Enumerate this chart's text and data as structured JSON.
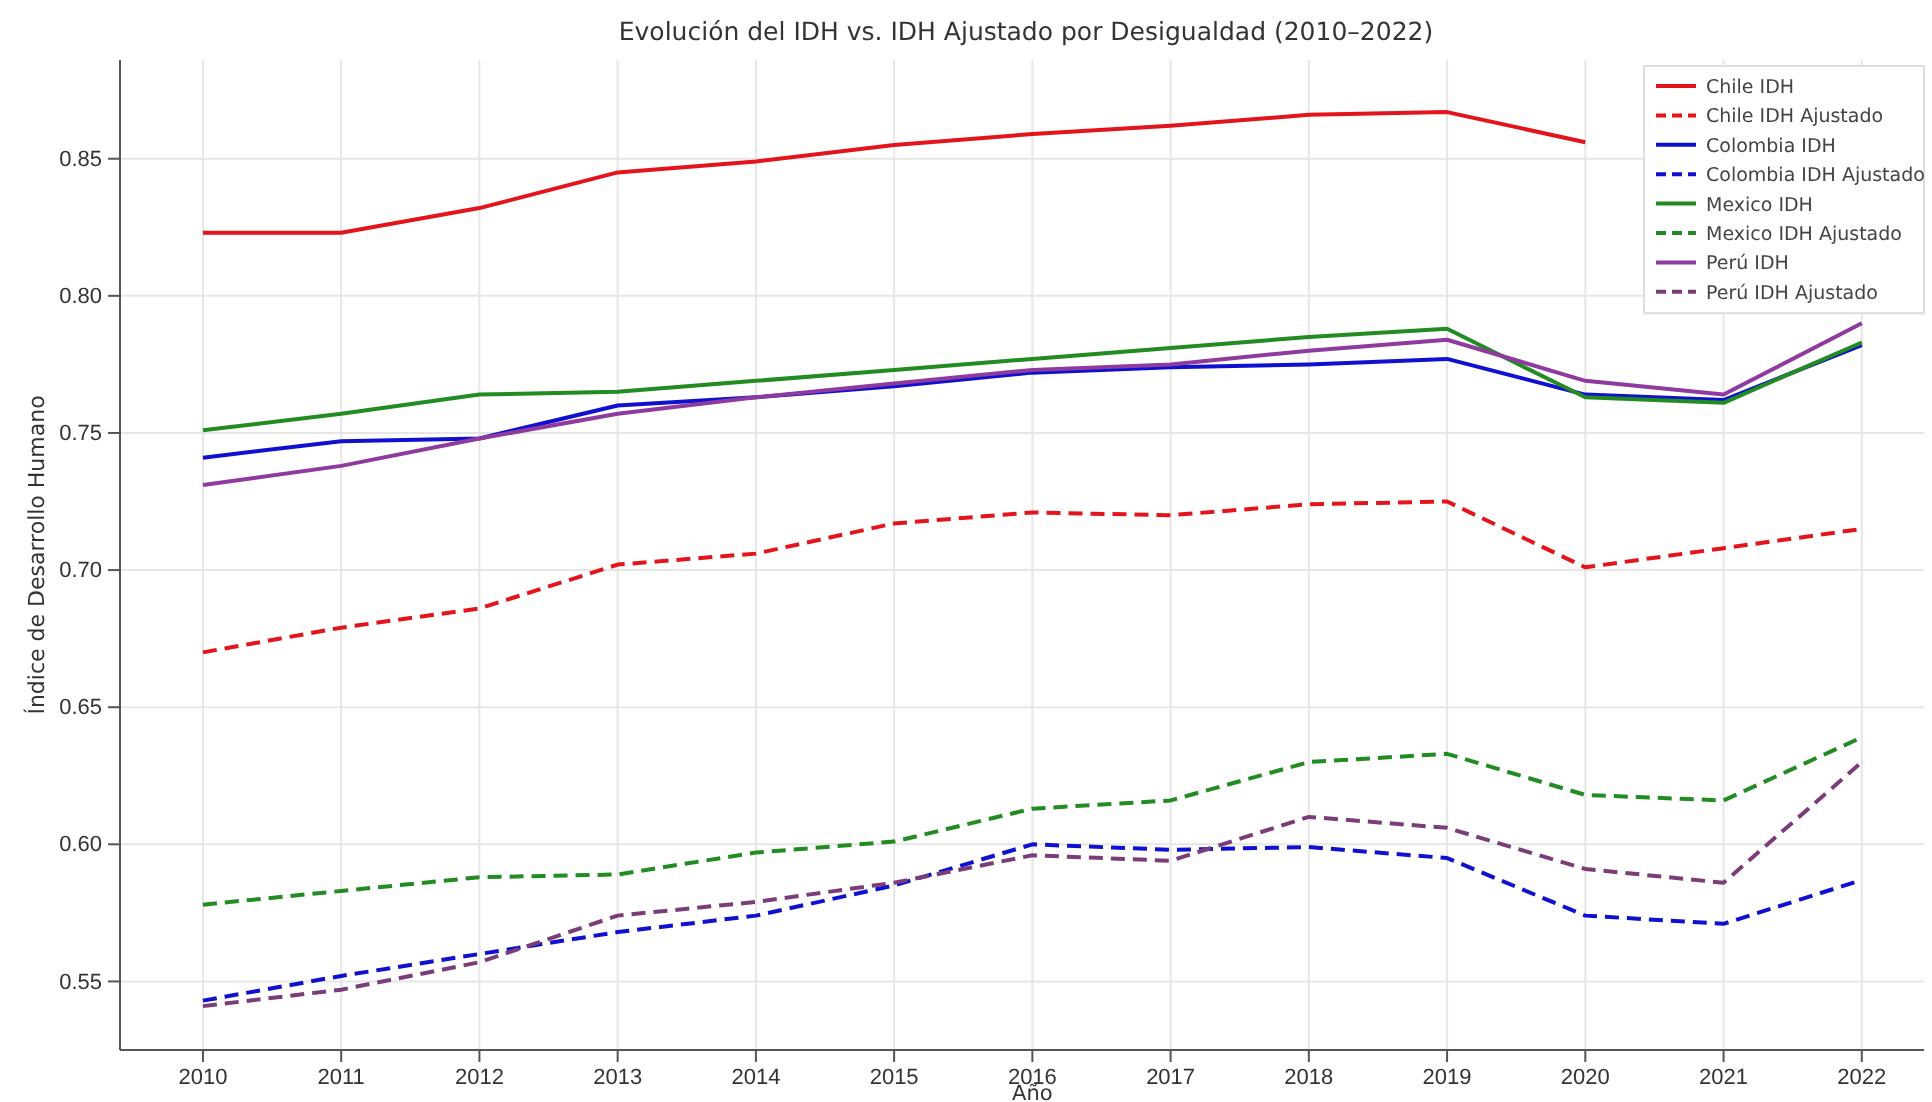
{
  "chart_data": {
    "type": "line",
    "title": "Evolución del IDH vs. IDH Ajustado por Desigualdad (2010–2022)",
    "xlabel": "Año",
    "ylabel": "Índice de Desarrollo Humano",
    "x": [
      2010,
      2011,
      2012,
      2013,
      2014,
      2015,
      2016,
      2017,
      2018,
      2019,
      2020,
      2021,
      2022
    ],
    "xlim": [
      2009.4,
      2022.45
    ],
    "xticks": [
      2010,
      2011,
      2012,
      2013,
      2014,
      2015,
      2016,
      2017,
      2018,
      2019,
      2020,
      2021,
      2022
    ],
    "ylim": [
      0.525,
      0.886
    ],
    "yticks": [
      0.55,
      {
        "value": 0.6,
        "label": "0.60"
      },
      0.65,
      {
        "value": 0.7,
        "label": "0.70"
      },
      0.75,
      {
        "value": 0.8,
        "label": "0.80"
      },
      0.85
    ],
    "grid": true,
    "legend": "top right",
    "series": [
      {
        "name": "Chile IDH",
        "color": "#e3141b",
        "line_style": "solid",
        "values": [
          0.823,
          0.823,
          0.832,
          0.845,
          0.849,
          0.855,
          0.859,
          0.862,
          0.866,
          0.867,
          0.856,
          null,
          null
        ]
      },
      {
        "name": "Chile IDH Ajustado",
        "color": "#e3141b",
        "line_style": "dashed",
        "values": [
          0.67,
          0.679,
          0.686,
          0.702,
          0.706,
          0.717,
          0.721,
          0.72,
          0.724,
          0.725,
          0.701,
          0.708,
          0.715
        ]
      },
      {
        "name": "Colombia IDH",
        "color": "#1010d0",
        "line_style": "solid",
        "values": [
          0.741,
          0.747,
          0.748,
          0.76,
          0.763,
          0.767,
          0.772,
          0.774,
          0.775,
          0.777,
          0.764,
          0.762,
          0.782
        ]
      },
      {
        "name": "Colombia IDH Ajustado",
        "color": "#1010d0",
        "line_style": "dashed",
        "values": [
          0.543,
          0.552,
          0.56,
          0.568,
          0.574,
          0.585,
          0.6,
          0.598,
          0.599,
          0.595,
          0.574,
          0.571,
          0.587
        ]
      },
      {
        "name": "Mexico IDH",
        "color": "#228b22",
        "line_style": "solid",
        "values": [
          0.751,
          0.757,
          0.764,
          0.765,
          0.769,
          0.773,
          0.777,
          0.781,
          0.785,
          0.788,
          0.763,
          0.761,
          0.783
        ]
      },
      {
        "name": "Mexico IDH Ajustado",
        "color": "#228b22",
        "line_style": "dashed",
        "values": [
          0.578,
          0.583,
          0.588,
          0.589,
          0.597,
          0.601,
          0.613,
          0.616,
          0.63,
          0.633,
          0.618,
          0.616,
          0.639
        ]
      },
      {
        "name": "Perú IDH",
        "color": "#8e3a9e",
        "line_style": "solid",
        "values": [
          0.731,
          0.738,
          0.748,
          0.757,
          0.763,
          0.768,
          0.773,
          0.775,
          0.78,
          0.784,
          0.769,
          0.764,
          0.79
        ]
      },
      {
        "name": "Perú IDH Ajustado",
        "color": "#7a3d78",
        "line_style": "dashed",
        "values": [
          0.541,
          0.547,
          0.557,
          0.574,
          0.579,
          0.586,
          0.596,
          0.594,
          0.61,
          0.606,
          0.591,
          0.586,
          0.63
        ]
      }
    ]
  }
}
